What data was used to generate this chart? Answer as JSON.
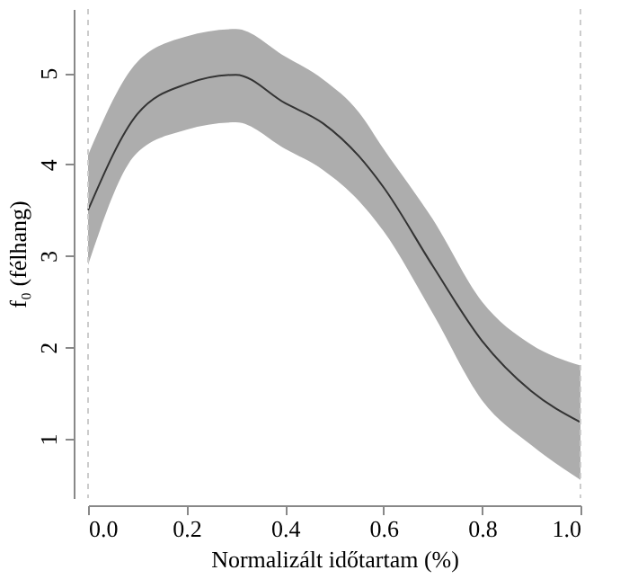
{
  "chart_data": {
    "type": "line",
    "xlabel": "Normalizált időtartam (%)",
    "ylabel": "f₀ (félhang)",
    "x": [
      0,
      0.1,
      0.2,
      0.3,
      0.4,
      0.477,
      0.55,
      0.6,
      0.7,
      0.8,
      0.9,
      1.0
    ],
    "series": [
      {
        "color": "#333333",
        "values": [
          3.5,
          4.55,
          4.88,
          4.98,
          4.67,
          4.45,
          4.09,
          3.75,
          2.89,
          2.07,
          1.52,
          1.18
        ],
        "lower": [
          2.9,
          4.13,
          4.38,
          4.46,
          4.17,
          3.94,
          3.6,
          3.27,
          2.37,
          1.42,
          0.93,
          0.55
        ],
        "upper": [
          4.1,
          5.12,
          5.4,
          5.48,
          5.18,
          4.93,
          4.57,
          4.17,
          3.4,
          2.5,
          2.03,
          1.8
        ]
      }
    ],
    "xlim": [
      0,
      1
    ],
    "xticks": [
      {
        "value": 0,
        "label": "0.0"
      },
      0.2,
      0.4,
      0.6,
      0.8,
      {
        "value": 1,
        "label": "1.0"
      }
    ],
    "ylim": [
      0.35,
      5.7
    ],
    "yticks": [
      1,
      2,
      3,
      4,
      5
    ],
    "ref_lines": [
      {
        "axis": "x",
        "value": 0,
        "color": "#cccccc",
        "line_style": "dashed"
      },
      {
        "axis": "x",
        "value": 1,
        "color": "#cccccc",
        "line_style": "dashed"
      }
    ],
    "grid": false,
    "marker": "none",
    "line_style": "solid"
  }
}
